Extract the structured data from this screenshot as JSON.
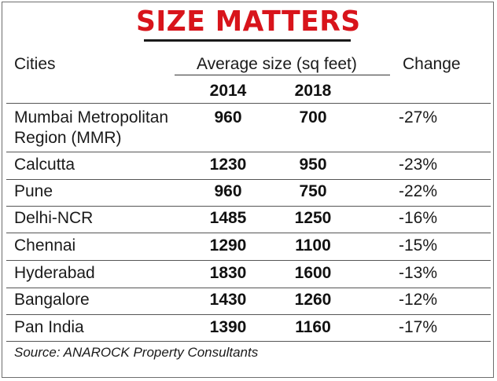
{
  "title": "SIZE MATTERS",
  "headers": {
    "cities": "Cities",
    "average_size": "Average size (sq feet)",
    "change": "Change",
    "year_1": "2014",
    "year_2": "2018"
  },
  "rows": [
    {
      "city": "Mumbai Metropolitan Region (MMR)",
      "y2014": "960",
      "y2018": "700",
      "change": "-27%"
    },
    {
      "city": "Calcutta",
      "y2014": "1230",
      "y2018": "950",
      "change": "-23%"
    },
    {
      "city": "Pune",
      "y2014": "960",
      "y2018": "750",
      "change": "-22%"
    },
    {
      "city": "Delhi-NCR",
      "y2014": "1485",
      "y2018": "1250",
      "change": "-16%"
    },
    {
      "city": "Chennai",
      "y2014": "1290",
      "y2018": "1100",
      "change": "-15%"
    },
    {
      "city": "Hyderabad",
      "y2014": "1830",
      "y2018": "1600",
      "change": "-13%"
    },
    {
      "city": "Bangalore",
      "y2014": "1430",
      "y2018": "1260",
      "change": "-12%"
    },
    {
      "city": "Pan India",
      "y2014": "1390",
      "y2018": "1160",
      "change": "-17%"
    }
  ],
  "source": "Source: ANAROCK Property Consultants",
  "colors": {
    "title": "#d8141b",
    "text": "#1a1a1a"
  }
}
